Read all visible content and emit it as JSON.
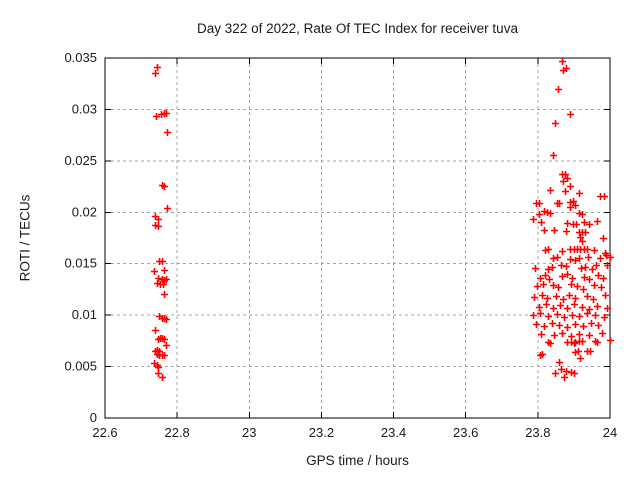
{
  "chart_data": {
    "type": "scatter",
    "title": "Day 322 of 2022, Rate Of TEC Index for receiver tuva",
    "xlabel": "GPS time / hours",
    "ylabel": "ROTI / TECUs",
    "xlim": [
      22.6,
      24
    ],
    "ylim": [
      0,
      0.035
    ],
    "x_ticks": [
      22.6,
      22.8,
      23,
      23.2,
      23.4,
      23.6,
      23.8,
      24
    ],
    "x_tick_labels": [
      "22.6",
      "22.8",
      "23",
      "23.2",
      "23.4",
      "23.6",
      "23.8",
      "24"
    ],
    "y_ticks": [
      0,
      0.005,
      0.01,
      0.015,
      0.02,
      0.025,
      0.03,
      0.035
    ],
    "y_tick_labels": [
      "0",
      "0.005",
      "0.01",
      "0.015",
      "0.02",
      "0.025",
      "0.03",
      "0.035"
    ],
    "grid": true,
    "legend_position": "none",
    "marker": "plus",
    "colors": {
      "marker": "#ff0000",
      "axis": "#000000",
      "grid": "#a6a6a6",
      "background": "#ffffff",
      "text": "#1a1a1a"
    },
    "series": [
      {
        "name": "ROTI",
        "points": [
          [
            22.745,
            0.0341
          ],
          [
            22.739,
            0.0335
          ],
          [
            22.741,
            0.0294
          ],
          [
            22.755,
            0.0296
          ],
          [
            22.763,
            0.0297
          ],
          [
            22.768,
            0.0297
          ],
          [
            22.773,
            0.0278
          ],
          [
            22.757,
            0.0227
          ],
          [
            22.764,
            0.0226
          ],
          [
            22.773,
            0.0204
          ],
          [
            22.739,
            0.0196
          ],
          [
            22.748,
            0.0193
          ],
          [
            22.739,
            0.0188
          ],
          [
            22.748,
            0.0187
          ],
          [
            22.751,
            0.0153
          ],
          [
            22.758,
            0.0153
          ],
          [
            22.737,
            0.0143
          ],
          [
            22.764,
            0.0144
          ],
          [
            22.748,
            0.0136
          ],
          [
            22.758,
            0.0135
          ],
          [
            22.763,
            0.0134
          ],
          [
            22.768,
            0.0135
          ],
          [
            22.743,
            0.0131
          ],
          [
            22.752,
            0.013
          ],
          [
            22.76,
            0.013
          ],
          [
            22.764,
            0.0121
          ],
          [
            22.75,
            0.0099
          ],
          [
            22.757,
            0.0097
          ],
          [
            22.763,
            0.0097
          ],
          [
            22.768,
            0.0096
          ],
          [
            22.739,
            0.0086
          ],
          [
            22.746,
            0.0077
          ],
          [
            22.753,
            0.0078
          ],
          [
            22.758,
            0.0078
          ],
          [
            22.764,
            0.0077
          ],
          [
            22.769,
            0.0071
          ],
          [
            22.739,
            0.0065
          ],
          [
            22.745,
            0.0066
          ],
          [
            22.751,
            0.0065
          ],
          [
            22.745,
            0.0062
          ],
          [
            22.751,
            0.0061
          ],
          [
            22.757,
            0.0061
          ],
          [
            22.763,
            0.0061
          ],
          [
            22.736,
            0.0053
          ],
          [
            22.743,
            0.0052
          ],
          [
            22.748,
            0.005
          ],
          [
            22.746,
            0.0044
          ],
          [
            22.757,
            0.004
          ],
          [
            23.866,
            0.0347
          ],
          [
            23.878,
            0.034
          ],
          [
            23.871,
            0.0338
          ],
          [
            23.857,
            0.032
          ],
          [
            23.889,
            0.0296
          ],
          [
            23.848,
            0.0287
          ],
          [
            23.841,
            0.0256
          ],
          [
            23.866,
            0.0237
          ],
          [
            23.876,
            0.0237
          ],
          [
            23.882,
            0.0233
          ],
          [
            23.871,
            0.023
          ],
          [
            23.889,
            0.0226
          ],
          [
            23.834,
            0.0222
          ],
          [
            23.875,
            0.0221
          ],
          [
            23.915,
            0.0219
          ],
          [
            23.972,
            0.0216
          ],
          [
            23.983,
            0.0216
          ],
          [
            23.795,
            0.0209
          ],
          [
            23.804,
            0.0209
          ],
          [
            23.852,
            0.0209
          ],
          [
            23.86,
            0.0209
          ],
          [
            23.888,
            0.021
          ],
          [
            23.897,
            0.0211
          ],
          [
            23.903,
            0.0207
          ],
          [
            23.888,
            0.0205
          ],
          [
            23.817,
            0.0201
          ],
          [
            23.825,
            0.02
          ],
          [
            23.802,
            0.0198
          ],
          [
            23.834,
            0.0199
          ],
          [
            23.913,
            0.0199
          ],
          [
            23.922,
            0.0198
          ],
          [
            23.786,
            0.0193
          ],
          [
            23.81,
            0.0191
          ],
          [
            23.88,
            0.019
          ],
          [
            23.897,
            0.0189
          ],
          [
            23.906,
            0.0189
          ],
          [
            23.928,
            0.0191
          ],
          [
            23.943,
            0.0189
          ],
          [
            23.964,
            0.0192
          ],
          [
            23.817,
            0.0183
          ],
          [
            23.845,
            0.0183
          ],
          [
            23.878,
            0.0182
          ],
          [
            23.913,
            0.0181
          ],
          [
            23.922,
            0.0181
          ],
          [
            23.931,
            0.0181
          ],
          [
            23.917,
            0.0176
          ],
          [
            23.922,
            0.0172
          ],
          [
            23.98,
            0.0175
          ],
          [
            23.82,
            0.0163
          ],
          [
            23.829,
            0.0164
          ],
          [
            23.866,
            0.0162
          ],
          [
            23.889,
            0.0164
          ],
          [
            23.899,
            0.0164
          ],
          [
            23.908,
            0.0164
          ],
          [
            23.918,
            0.0164
          ],
          [
            23.927,
            0.0164
          ],
          [
            23.936,
            0.0164
          ],
          [
            23.956,
            0.0163
          ],
          [
            23.986,
            0.016
          ],
          [
            23.841,
            0.0156
          ],
          [
            23.854,
            0.0157
          ],
          [
            23.889,
            0.0155
          ],
          [
            23.903,
            0.0154
          ],
          [
            23.915,
            0.0156
          ],
          [
            23.938,
            0.0157
          ],
          [
            23.973,
            0.0156
          ],
          [
            23.989,
            0.0158
          ],
          [
            23.999,
            0.0157
          ],
          [
            23.792,
            0.0146
          ],
          [
            23.829,
            0.0145
          ],
          [
            23.838,
            0.0147
          ],
          [
            23.863,
            0.0149
          ],
          [
            23.878,
            0.0148
          ],
          [
            23.919,
            0.0146
          ],
          [
            23.931,
            0.0147
          ],
          [
            23.949,
            0.0145
          ],
          [
            23.961,
            0.0149
          ],
          [
            23.991,
            0.0149
          ],
          [
            23.806,
            0.0136
          ],
          [
            23.82,
            0.0139
          ],
          [
            23.832,
            0.0135
          ],
          [
            23.866,
            0.0138
          ],
          [
            23.88,
            0.014
          ],
          [
            23.894,
            0.0136
          ],
          [
            23.928,
            0.0137
          ],
          [
            23.943,
            0.0135
          ],
          [
            23.968,
            0.0139
          ],
          [
            23.98,
            0.0136
          ],
          [
            23.798,
            0.0128
          ],
          [
            23.815,
            0.013
          ],
          [
            23.841,
            0.0129
          ],
          [
            23.857,
            0.0127
          ],
          [
            23.891,
            0.013
          ],
          [
            23.908,
            0.0128
          ],
          [
            23.924,
            0.0125
          ],
          [
            23.955,
            0.0129
          ],
          [
            23.974,
            0.0127
          ],
          [
            23.79,
            0.0118
          ],
          [
            23.811,
            0.012
          ],
          [
            23.826,
            0.0117
          ],
          [
            23.85,
            0.0119
          ],
          [
            23.869,
            0.0116
          ],
          [
            23.887,
            0.012
          ],
          [
            23.903,
            0.0117
          ],
          [
            23.936,
            0.0119
          ],
          [
            23.952,
            0.0116
          ],
          [
            23.986,
            0.012
          ],
          [
            23.802,
            0.0108
          ],
          [
            23.823,
            0.0111
          ],
          [
            23.843,
            0.0107
          ],
          [
            23.862,
            0.011
          ],
          [
            23.882,
            0.0107
          ],
          [
            23.899,
            0.0111
          ],
          [
            23.922,
            0.0108
          ],
          [
            23.943,
            0.0106
          ],
          [
            23.964,
            0.0109
          ],
          [
            23.993,
            0.0107
          ],
          [
            23.787,
            0.01
          ],
          [
            23.806,
            0.0102
          ],
          [
            23.829,
            0.0099
          ],
          [
            23.852,
            0.0101
          ],
          [
            23.873,
            0.0098
          ],
          [
            23.894,
            0.01
          ],
          [
            23.915,
            0.0099
          ],
          [
            23.936,
            0.0102
          ],
          [
            23.959,
            0.01
          ],
          [
            23.982,
            0.0098
          ],
          [
            23.796,
            0.0091
          ],
          [
            23.818,
            0.0089
          ],
          [
            23.839,
            0.0092
          ],
          [
            23.86,
            0.009
          ],
          [
            23.88,
            0.0088
          ],
          [
            23.903,
            0.0091
          ],
          [
            23.924,
            0.0089
          ],
          [
            23.946,
            0.0092
          ],
          [
            23.967,
            0.009
          ],
          [
            23.808,
            0.0082
          ],
          [
            23.845,
            0.0081
          ],
          [
            23.868,
            0.0083
          ],
          [
            23.891,
            0.008
          ],
          [
            23.914,
            0.0082
          ],
          [
            23.942,
            0.0081
          ],
          [
            23.979,
            0.0083
          ],
          [
            23.829,
            0.0074
          ],
          [
            23.899,
            0.0073
          ],
          [
            23.922,
            0.0075
          ],
          [
            23.963,
            0.0074
          ],
          [
            23.999,
            0.0076
          ],
          [
            23.834,
            0.0073
          ],
          [
            23.88,
            0.0074
          ],
          [
            23.891,
            0.0074
          ],
          [
            23.903,
            0.0074
          ],
          [
            23.915,
            0.0075
          ],
          [
            23.958,
            0.0075
          ],
          [
            23.805,
            0.0061
          ],
          [
            23.812,
            0.0062
          ],
          [
            23.903,
            0.0064
          ],
          [
            23.912,
            0.0065
          ],
          [
            23.937,
            0.0065
          ],
          [
            23.944,
            0.0065
          ],
          [
            23.916,
            0.0058
          ],
          [
            23.858,
            0.0054
          ],
          [
            23.865,
            0.0048
          ],
          [
            23.879,
            0.0046
          ],
          [
            23.891,
            0.0045
          ],
          [
            23.848,
            0.0044
          ],
          [
            23.901,
            0.0044
          ],
          [
            23.873,
            0.004
          ]
        ]
      }
    ]
  }
}
